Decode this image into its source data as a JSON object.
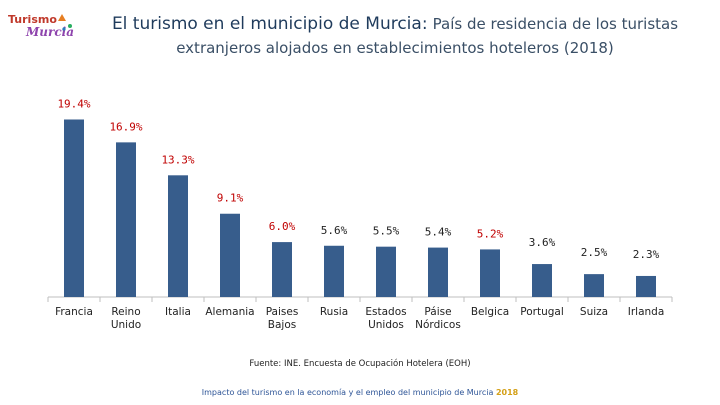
{
  "logo": {
    "text_top": "Turismo",
    "text_bottom": "Murcia"
  },
  "title": {
    "main": "El turismo en el municipio de Murcia:",
    "sub_line1": "País de residencia de los turistas",
    "sub_line2": "extranjeros alojados en establecimientos hoteleros (2018)"
  },
  "chart_data": {
    "type": "bar",
    "categories": [
      [
        "Francia"
      ],
      [
        "Reino",
        "Unido"
      ],
      [
        "Italia"
      ],
      [
        "Alemania"
      ],
      [
        "Paises",
        "Bajos"
      ],
      [
        "Rusia"
      ],
      [
        "Estados",
        "Unidos"
      ],
      [
        "Páise",
        "Nórdicos"
      ],
      [
        "Belgica"
      ],
      [
        "Portugal"
      ],
      [
        "Suiza"
      ],
      [
        "Irlanda"
      ]
    ],
    "values": [
      19.4,
      16.9,
      13.3,
      9.1,
      6.0,
      5.6,
      5.5,
      5.4,
      5.2,
      3.6,
      2.5,
      2.3
    ],
    "labels": [
      "19.4%",
      "16.9%",
      "13.3%",
      "9.1%",
      "6.0%",
      "5.6%",
      "5.5%",
      "5.4%",
      "5.2%",
      "3.6%",
      "2.5%",
      "2.3%"
    ],
    "label_colors": [
      "#c00000",
      "#c00000",
      "#c00000",
      "#c00000",
      "#c00000",
      "#222222",
      "#222222",
      "#222222",
      "#c00000",
      "#222222",
      "#222222",
      "#222222"
    ],
    "bar_color": "#375d8c",
    "axis_color": "#bfbfbf",
    "ylim": [
      0,
      20
    ],
    "grid": false
  },
  "source": "Fuente: INE. Encuesta de Ocupación Hotelera (EOH)",
  "footer": {
    "text": "Impacto del turismo en la economía y el empleo del municipio de Murcia",
    "year": "2018"
  }
}
